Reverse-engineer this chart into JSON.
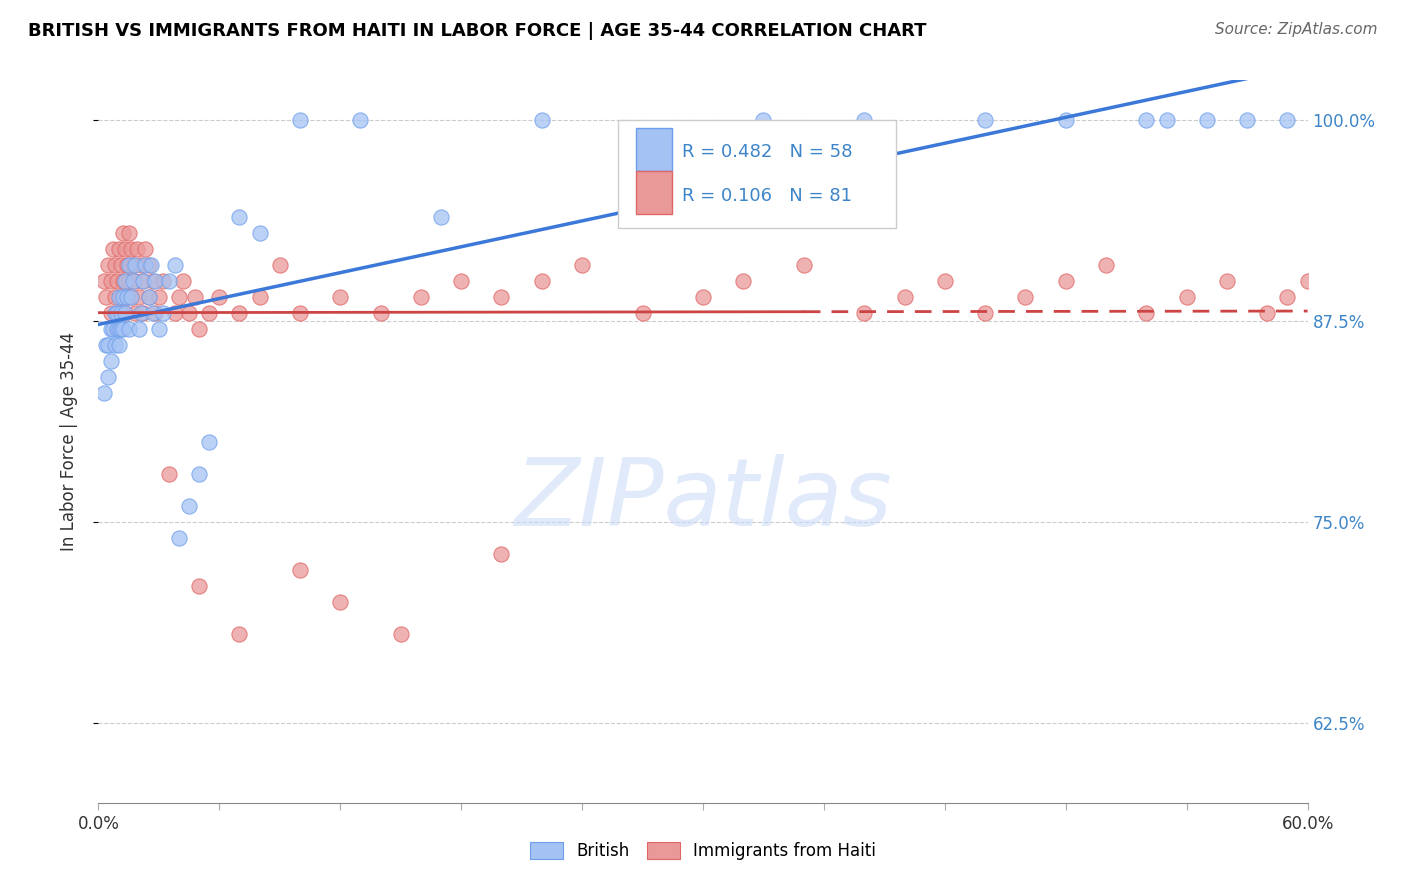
{
  "title": "BRITISH VS IMMIGRANTS FROM HAITI IN LABOR FORCE | AGE 35-44 CORRELATION CHART",
  "source": "Source: ZipAtlas.com",
  "ylabel": "In Labor Force | Age 35-44",
  "watermark": "ZIPatlas",
  "xmin": 0.0,
  "xmax": 0.6,
  "ymin": 0.575,
  "ymax": 1.025,
  "yticks": [
    0.625,
    0.75,
    0.875,
    1.0
  ],
  "ytick_labels": [
    "62.5%",
    "75.0%",
    "87.5%",
    "100.0%"
  ],
  "xticks": [
    0.0,
    0.06,
    0.12,
    0.18,
    0.24,
    0.3,
    0.36,
    0.42,
    0.48,
    0.54,
    0.6
  ],
  "legend_R_british": "R = 0.482",
  "legend_N_british": "N = 58",
  "legend_R_haiti": "R = 0.106",
  "legend_N_haiti": "N = 81",
  "british_color": "#a4c2f4",
  "british_edge_color": "#6d9eeb",
  "haiti_color": "#ea9999",
  "haiti_edge_color": "#e06666",
  "british_line_color": "#3c78d8",
  "haiti_line_color": "#cc4444",
  "legend_text_color": "#3d85c8",
  "title_color": "#000000",
  "source_color": "#666666",
  "watermark_color": "#c9daf8",
  "watermark_color2": "#d9ead3",
  "british_scatter_x": [
    0.003,
    0.004,
    0.005,
    0.005,
    0.006,
    0.006,
    0.007,
    0.008,
    0.008,
    0.009,
    0.009,
    0.01,
    0.01,
    0.01,
    0.011,
    0.011,
    0.012,
    0.012,
    0.013,
    0.013,
    0.014,
    0.015,
    0.015,
    0.016,
    0.017,
    0.018,
    0.02,
    0.021,
    0.022,
    0.023,
    0.025,
    0.026,
    0.027,
    0.028,
    0.03,
    0.032,
    0.035,
    0.038,
    0.04,
    0.045,
    0.05,
    0.055,
    0.07,
    0.08,
    0.1,
    0.13,
    0.17,
    0.22,
    0.27,
    0.33,
    0.38,
    0.44,
    0.48,
    0.52,
    0.53,
    0.55,
    0.57,
    0.59
  ],
  "british_scatter_y": [
    0.83,
    0.86,
    0.84,
    0.86,
    0.87,
    0.85,
    0.87,
    0.88,
    0.86,
    0.88,
    0.87,
    0.89,
    0.87,
    0.86,
    0.88,
    0.87,
    0.89,
    0.87,
    0.9,
    0.88,
    0.89,
    0.91,
    0.87,
    0.89,
    0.9,
    0.91,
    0.87,
    0.88,
    0.9,
    0.91,
    0.89,
    0.91,
    0.88,
    0.9,
    0.87,
    0.88,
    0.9,
    0.91,
    0.74,
    0.76,
    0.78,
    0.8,
    0.94,
    0.93,
    1.0,
    1.0,
    0.94,
    1.0,
    0.96,
    1.0,
    1.0,
    1.0,
    1.0,
    1.0,
    1.0,
    1.0,
    1.0,
    1.0
  ],
  "haiti_scatter_x": [
    0.003,
    0.004,
    0.005,
    0.006,
    0.006,
    0.007,
    0.008,
    0.008,
    0.009,
    0.01,
    0.01,
    0.011,
    0.011,
    0.012,
    0.012,
    0.013,
    0.013,
    0.014,
    0.014,
    0.015,
    0.015,
    0.016,
    0.016,
    0.017,
    0.018,
    0.018,
    0.019,
    0.02,
    0.021,
    0.022,
    0.022,
    0.023,
    0.025,
    0.025,
    0.027,
    0.028,
    0.03,
    0.032,
    0.035,
    0.038,
    0.04,
    0.042,
    0.045,
    0.048,
    0.05,
    0.055,
    0.06,
    0.07,
    0.08,
    0.09,
    0.1,
    0.12,
    0.14,
    0.16,
    0.18,
    0.2,
    0.22,
    0.24,
    0.27,
    0.3,
    0.32,
    0.35,
    0.38,
    0.4,
    0.42,
    0.44,
    0.46,
    0.48,
    0.5,
    0.52,
    0.54,
    0.56,
    0.58,
    0.59,
    0.6,
    0.05,
    0.1,
    0.15,
    0.2,
    0.07,
    0.12
  ],
  "haiti_scatter_y": [
    0.9,
    0.89,
    0.91,
    0.9,
    0.88,
    0.92,
    0.91,
    0.89,
    0.9,
    0.92,
    0.88,
    0.91,
    0.89,
    0.93,
    0.9,
    0.92,
    0.88,
    0.91,
    0.89,
    0.93,
    0.9,
    0.92,
    0.89,
    0.91,
    0.9,
    0.88,
    0.92,
    0.89,
    0.91,
    0.9,
    0.88,
    0.92,
    0.89,
    0.91,
    0.9,
    0.88,
    0.89,
    0.9,
    0.78,
    0.88,
    0.89,
    0.9,
    0.88,
    0.89,
    0.87,
    0.88,
    0.89,
    0.88,
    0.89,
    0.91,
    0.88,
    0.89,
    0.88,
    0.89,
    0.9,
    0.89,
    0.9,
    0.91,
    0.88,
    0.89,
    0.9,
    0.91,
    0.88,
    0.89,
    0.9,
    0.88,
    0.89,
    0.9,
    0.91,
    0.88,
    0.89,
    0.9,
    0.88,
    0.89,
    0.9,
    0.71,
    0.72,
    0.68,
    0.73,
    0.68,
    0.7
  ]
}
